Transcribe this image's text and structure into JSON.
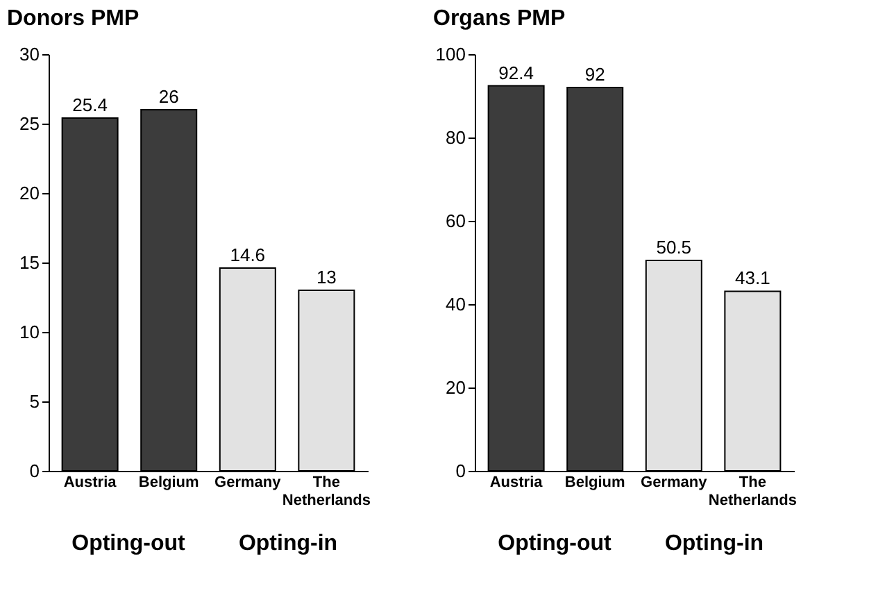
{
  "chart_data": [
    {
      "type": "bar",
      "title": "Donors PMP",
      "categories": [
        "Austria",
        "Belgium",
        "Germany",
        "The Netherlands"
      ],
      "values": [
        25.4,
        26,
        14.6,
        13
      ],
      "colors": [
        "#3c3c3c",
        "#3c3c3c",
        "#e2e2e2",
        "#e2e2e2"
      ],
      "ylim": [
        0,
        30
      ],
      "yticks": [
        0,
        5,
        10,
        15,
        20,
        25,
        30
      ],
      "grid": false,
      "data_labels": true,
      "annotations": [
        "Opting-out",
        "Opting-in"
      ]
    },
    {
      "type": "bar",
      "title": "Organs PMP",
      "categories": [
        "Austria",
        "Belgium",
        "Germany",
        "The Netherlands"
      ],
      "values": [
        92.4,
        92,
        50.5,
        43.1
      ],
      "colors": [
        "#3c3c3c",
        "#3c3c3c",
        "#e2e2e2",
        "#e2e2e2"
      ],
      "ylim": [
        0,
        100
      ],
      "yticks": [
        0,
        20,
        40,
        60,
        80,
        100
      ],
      "grid": false,
      "data_labels": true,
      "annotations": [
        "Opting-out",
        "Opting-in"
      ]
    }
  ]
}
